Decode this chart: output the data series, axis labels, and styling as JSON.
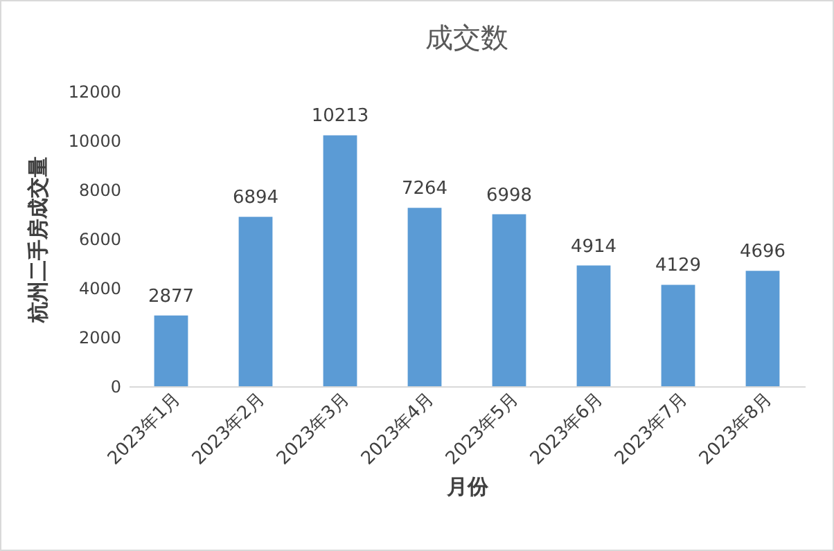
{
  "chart_data": {
    "type": "bar",
    "title": "成交数",
    "xlabel": "月份",
    "ylabel": "杭州二手房成交量",
    "categories": [
      "2023年1月",
      "2023年2月",
      "2023年3月",
      "2023年4月",
      "2023年5月",
      "2023年6月",
      "2023年7月",
      "2023年8月"
    ],
    "values": [
      2877,
      6894,
      10213,
      7264,
      6998,
      4914,
      4129,
      4696
    ],
    "color": "#5b9bd5",
    "ylim": [
      0,
      12000
    ],
    "yticks": [
      0,
      2000,
      4000,
      6000,
      8000,
      10000,
      12000
    ],
    "data_labels": true
  }
}
